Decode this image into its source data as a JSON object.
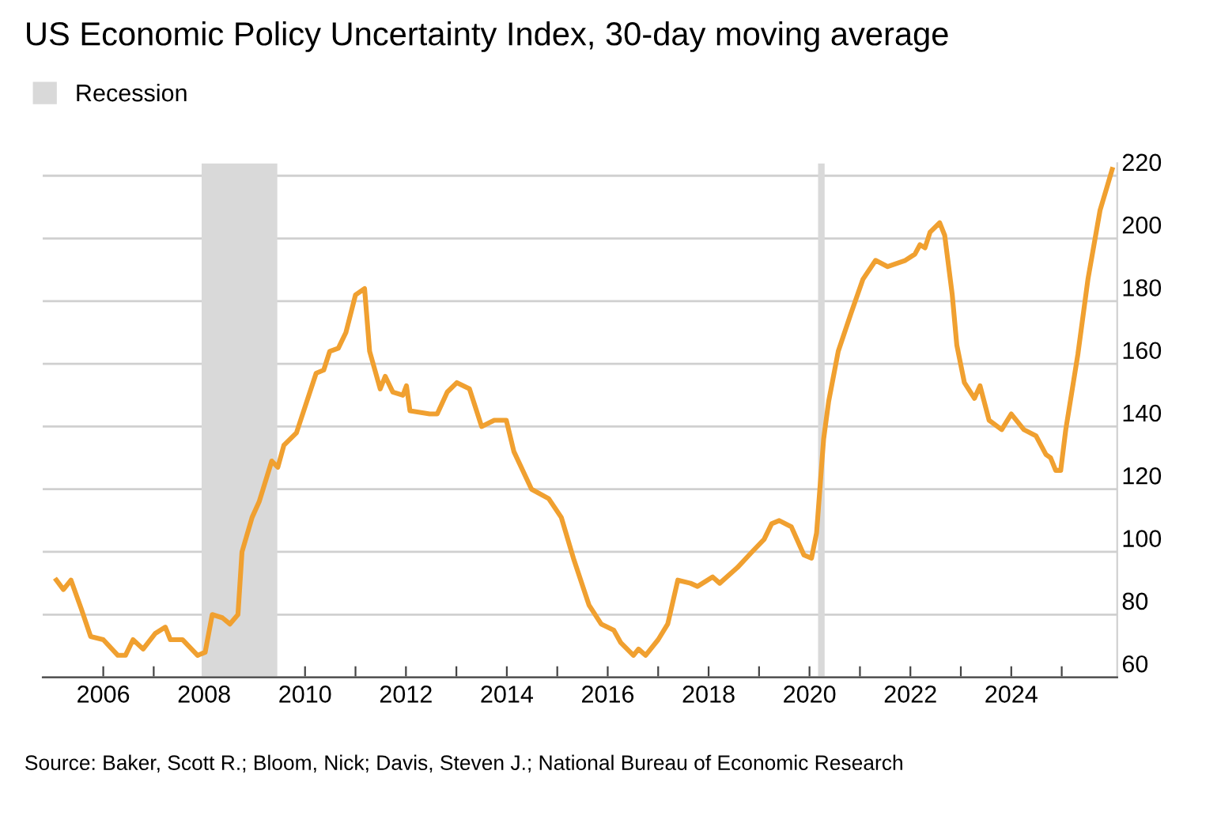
{
  "chart_data": {
    "type": "line",
    "title": "US Economic Policy Uncertainty Index, 30-day moving average",
    "annotations": [
      "Source: Baker, Scott R.; Bloom, Nick; Davis, Steven J.; National Bureau of Economic Research"
    ],
    "series": [
      {
        "color": "#f0a030",
        "x": [
          2005.07,
          2005.21,
          2005.36,
          2005.56,
          2005.75,
          2006.0,
          2006.29,
          2006.44,
          2006.59,
          2006.79,
          2007.03,
          2007.23,
          2007.33,
          2007.57,
          2007.87,
          2008.02,
          2008.16,
          2008.36,
          2008.51,
          2008.67,
          2008.75,
          2008.95,
          2009.09,
          2009.34,
          2009.46,
          2009.58,
          2009.83,
          2010.22,
          2010.37,
          2010.49,
          2010.66,
          2010.81,
          2011.0,
          2011.18,
          2011.28,
          2011.49,
          2011.59,
          2011.74,
          2011.94,
          2012.01,
          2012.08,
          2012.47,
          2012.62,
          2012.82,
          2013.01,
          2013.26,
          2013.5,
          2013.75,
          2013.99,
          2014.14,
          2014.49,
          2014.83,
          2015.08,
          2015.32,
          2015.63,
          2015.87,
          2016.12,
          2016.26,
          2016.51,
          2016.61,
          2016.75,
          2017.0,
          2017.19,
          2017.39,
          2017.64,
          2017.78,
          2018.08,
          2018.22,
          2018.57,
          2018.86,
          2019.1,
          2019.25,
          2019.4,
          2019.64,
          2019.89,
          2020.04,
          2020.14,
          2020.28,
          2020.38,
          2020.57,
          2020.82,
          2021.06,
          2021.31,
          2021.55,
          2021.9,
          2022.09,
          2022.19,
          2022.29,
          2022.39,
          2022.58,
          2022.68,
          2022.83,
          2022.92,
          2023.07,
          2023.27,
          2023.38,
          2023.56,
          2023.81,
          2024.0,
          2024.25,
          2024.49,
          2024.69,
          2024.78,
          2024.88,
          2024.98,
          2025.08,
          2025.32,
          2025.52,
          2025.76,
          2025.89,
          2026.0
        ],
        "values": [
          91,
          88,
          91,
          82,
          73,
          72,
          67,
          67,
          72,
          69,
          74,
          76,
          72,
          72,
          67,
          68,
          80,
          79,
          77,
          80,
          100,
          111,
          116,
          129,
          127,
          134,
          138,
          157,
          158,
          164,
          165,
          170,
          182,
          184,
          164,
          152,
          156,
          151,
          150,
          153,
          145,
          144,
          144,
          151,
          154,
          152,
          140,
          142,
          142,
          132,
          120,
          117,
          111,
          98,
          83,
          77,
          75,
          71,
          67,
          69,
          67,
          72,
          77,
          91,
          90,
          89,
          92,
          90,
          95,
          100,
          104,
          109,
          110,
          108,
          99,
          98,
          106,
          136,
          148,
          164,
          176,
          187,
          193,
          191,
          193,
          195,
          198,
          197,
          202,
          205,
          201,
          182,
          166,
          154,
          149,
          153,
          142,
          139,
          144,
          139,
          137,
          131,
          130,
          126,
          126,
          139,
          163,
          187,
          209,
          216,
          222
        ]
      }
    ],
    "bands": [
      {
        "axis": "x",
        "from": 2007.95,
        "to": 2009.45,
        "label": "Recession",
        "color": "#d9d9d9"
      },
      {
        "axis": "x",
        "from": 2020.17,
        "to": 2020.3,
        "color": "#d9d9d9"
      }
    ],
    "xlim": [
      2004.8,
      2026.1
    ],
    "xticks": [
      2006,
      {
        "value": 2007,
        "label": null
      },
      2008,
      {
        "value": 2009,
        "label": null
      },
      2010,
      {
        "value": 2011,
        "label": null
      },
      2012,
      {
        "value": 2013,
        "label": null
      },
      2014,
      {
        "value": 2015,
        "label": null
      },
      2016,
      {
        "value": 2017,
        "label": null
      },
      2018,
      {
        "value": 2019,
        "label": null
      },
      2020,
      {
        "value": 2021,
        "label": null
      },
      2022,
      {
        "value": 2023,
        "label": null
      },
      2024,
      {
        "value": 2025,
        "label": null
      }
    ],
    "ylim": [
      60,
      224
    ],
    "yticks": [
      60,
      80,
      100,
      120,
      140,
      160,
      180,
      200,
      220
    ],
    "grid": "y",
    "legend": "top left",
    "line_style": "solid",
    "marker": "none"
  }
}
